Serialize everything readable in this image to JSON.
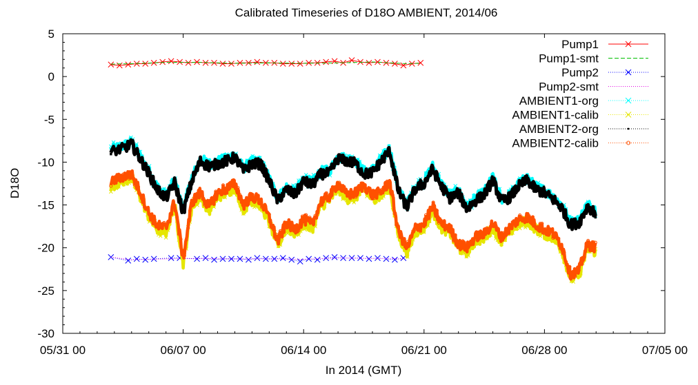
{
  "chart_data": {
    "type": "line",
    "title": "Calibrated Timeseries of D18O AMBIENT, 2014/06",
    "xlabel": "In 2014 (GMT)",
    "ylabel": "D18O",
    "ylim": [
      -30,
      5
    ],
    "yticks": [
      5,
      0,
      -5,
      -10,
      -15,
      -20,
      -25,
      -30
    ],
    "xlim": [
      "2014-05-31 00:00",
      "2014-07-05 00:00"
    ],
    "xticks": [
      "05/31 00",
      "06/07 00",
      "06/14 00",
      "06/21 00",
      "06/28 00",
      "07/05 00"
    ],
    "legend_position": "top-right",
    "grid": false,
    "series": [
      {
        "name": "Pump1",
        "color": "#ff0000",
        "marker": "x",
        "line": "solid",
        "x": [
          2.8,
          3.3,
          3.8,
          4.3,
          4.8,
          5.3,
          5.8,
          6.3,
          6.8,
          7.3,
          7.8,
          8.3,
          8.8,
          9.3,
          9.8,
          10.3,
          10.8,
          11.3,
          11.8,
          12.3,
          12.8,
          13.3,
          13.8,
          14.3,
          14.8,
          15.3,
          15.8,
          16.3,
          16.8,
          17.3,
          17.8,
          18.3,
          18.8,
          19.3,
          19.8,
          20.3,
          20.8
        ],
        "y": [
          1.4,
          1.3,
          1.4,
          1.5,
          1.5,
          1.6,
          1.7,
          1.8,
          1.7,
          1.6,
          1.7,
          1.6,
          1.6,
          1.5,
          1.5,
          1.6,
          1.6,
          1.7,
          1.6,
          1.6,
          1.5,
          1.5,
          1.5,
          1.6,
          1.6,
          1.7,
          1.8,
          1.6,
          1.9,
          1.7,
          1.6,
          1.7,
          1.6,
          1.5,
          1.3,
          1.5,
          1.6
        ]
      },
      {
        "name": "Pump1-smt",
        "color": "#00c000",
        "marker": "none",
        "line": "dashed",
        "x": [
          2.8,
          4.0,
          6.0,
          8.0,
          10.0,
          12.0,
          14.0,
          16.0,
          18.0,
          20.0,
          20.8
        ],
        "y": [
          1.45,
          1.5,
          1.65,
          1.65,
          1.55,
          1.6,
          1.55,
          1.6,
          1.7,
          1.5,
          1.55
        ]
      },
      {
        "name": "Pump2",
        "color": "#0000ff",
        "marker": "x",
        "line": "dotted",
        "x": [
          2.8,
          3.8,
          4.3,
          4.8,
          5.3,
          6.3,
          6.8,
          7.8,
          8.3,
          8.8,
          9.3,
          9.8,
          10.3,
          10.8,
          11.3,
          11.8,
          12.3,
          12.8,
          13.3,
          13.8,
          14.3,
          14.8,
          15.3,
          15.8,
          16.3,
          16.8,
          17.3,
          17.8,
          18.3,
          18.8,
          19.3,
          19.8
        ],
        "y": [
          -21.1,
          -21.5,
          -21.3,
          -21.4,
          -21.3,
          -21.2,
          -21.2,
          -21.3,
          -21.2,
          -21.4,
          -21.3,
          -21.3,
          -21.3,
          -21.4,
          -21.2,
          -21.3,
          -21.3,
          -21.2,
          -21.4,
          -21.6,
          -21.3,
          -21.4,
          -21.2,
          -21.1,
          -21.2,
          -21.2,
          -21.2,
          -21.3,
          -21.2,
          -21.3,
          -21.4,
          -21.2
        ]
      },
      {
        "name": "Pump2-smt",
        "color": "#e000e0",
        "marker": "none",
        "line": "dotted",
        "x": [
          2.8,
          4.0,
          6.0,
          8.0,
          10.0,
          12.0,
          14.0,
          16.0,
          18.0,
          19.8
        ],
        "y": [
          -21.1,
          -21.4,
          -21.3,
          -21.25,
          -21.3,
          -21.3,
          -21.35,
          -21.2,
          -21.25,
          -21.3
        ]
      },
      {
        "name": "AMBIENT1-org",
        "color": "#00ffff",
        "marker": "x",
        "line": "dotted",
        "x": [
          2.8,
          3.5,
          4.0,
          4.5,
          5.0,
          5.5,
          6.0,
          6.5,
          7.0,
          7.5,
          8.0,
          8.5,
          9.0,
          9.5,
          10.0,
          10.5,
          11.0,
          11.5,
          12.0,
          12.5,
          13.0,
          13.5,
          14.0,
          14.5,
          15.0,
          15.5,
          16.0,
          16.5,
          17.0,
          17.5,
          18.0,
          18.5,
          19.0,
          19.5,
          20.0,
          20.5,
          21.0,
          21.5,
          22.0,
          22.5,
          23.0,
          23.5,
          24.0,
          24.5,
          25.0,
          25.5,
          26.0,
          26.5,
          27.0,
          27.5,
          28.0,
          28.5,
          29.0,
          29.5,
          30.0,
          30.5,
          31.0
        ],
        "y": [
          -8.5,
          -8.1,
          -7.6,
          -9.3,
          -11.0,
          -12.9,
          -13.9,
          -12.1,
          -15.5,
          -11.9,
          -9.6,
          -10.2,
          -9.9,
          -9.6,
          -9.1,
          -10.7,
          -9.9,
          -9.9,
          -11.9,
          -14.2,
          -12.9,
          -13.5,
          -11.9,
          -12.4,
          -11.1,
          -11.0,
          -9.3,
          -9.6,
          -9.8,
          -11.1,
          -10.9,
          -9.6,
          -8.4,
          -13.0,
          -15.0,
          -12.8,
          -12.2,
          -10.5,
          -12.5,
          -13.9,
          -13.3,
          -15.2,
          -14.2,
          -13.5,
          -11.8,
          -14.3,
          -13.8,
          -12.5,
          -11.8,
          -12.9,
          -13.3,
          -14.0,
          -15.0,
          -17.0,
          -16.8,
          -14.9,
          -15.6
        ]
      },
      {
        "name": "AMBIENT1-calib",
        "color": "#e6e600",
        "marker": "x",
        "line": "dotted",
        "x": [
          2.8,
          3.5,
          4.0,
          4.5,
          5.0,
          5.5,
          6.0,
          6.5,
          7.0,
          7.5,
          8.0,
          8.5,
          9.0,
          9.5,
          10.0,
          10.5,
          11.0,
          11.5,
          12.0,
          12.5,
          13.0,
          13.5,
          14.0,
          14.5,
          15.0,
          15.5,
          16.0,
          16.5,
          17.0,
          17.5,
          18.0,
          18.5,
          19.0,
          19.5,
          20.0,
          20.5,
          21.0,
          21.5,
          22.0,
          22.5,
          23.0,
          23.5,
          24.0,
          24.5,
          25.0,
          25.5,
          26.0,
          26.5,
          27.0,
          27.5,
          28.0,
          28.5,
          29.0,
          29.5,
          30.0,
          30.5,
          31.0
        ],
        "y": [
          -12.8,
          -12.2,
          -11.9,
          -14.0,
          -16.4,
          -17.9,
          -18.2,
          -15.1,
          -21.8,
          -15.2,
          -14.0,
          -15.7,
          -14.1,
          -13.6,
          -13.0,
          -15.5,
          -14.5,
          -15.0,
          -17.0,
          -19.8,
          -17.6,
          -18.4,
          -17.2,
          -17.8,
          -15.1,
          -14.5,
          -13.0,
          -14.3,
          -14.1,
          -13.2,
          -14.3,
          -14.0,
          -12.8,
          -18.5,
          -20.6,
          -18.2,
          -17.7,
          -15.7,
          -17.7,
          -18.2,
          -20.1,
          -20.5,
          -19.2,
          -18.9,
          -17.6,
          -19.3,
          -18.1,
          -17.2,
          -16.9,
          -17.8,
          -18.4,
          -18.8,
          -20.2,
          -23.6,
          -23.2,
          -20.1,
          -20.5
        ]
      },
      {
        "name": "AMBIENT2-org",
        "color": "#000000",
        "marker": "square",
        "line": "dotted",
        "x": [
          2.8,
          3.5,
          4.0,
          4.5,
          5.0,
          5.5,
          6.0,
          6.5,
          7.0,
          7.5,
          8.0,
          8.5,
          9.0,
          9.5,
          10.0,
          10.5,
          11.0,
          11.5,
          12.0,
          12.5,
          13.0,
          13.5,
          14.0,
          14.5,
          15.0,
          15.5,
          16.0,
          16.5,
          17.0,
          17.5,
          18.0,
          18.5,
          19.0,
          19.5,
          20.0,
          20.5,
          21.0,
          21.5,
          22.0,
          22.5,
          23.0,
          23.5,
          24.0,
          24.5,
          25.0,
          25.5,
          26.0,
          26.5,
          27.0,
          27.5,
          28.0,
          28.5,
          29.0,
          29.5,
          30.0,
          30.5,
          31.0
        ],
        "y": [
          -8.8,
          -8.4,
          -7.9,
          -9.6,
          -11.3,
          -13.2,
          -14.2,
          -12.4,
          -15.8,
          -12.2,
          -9.9,
          -10.5,
          -10.2,
          -9.9,
          -9.4,
          -11.0,
          -10.2,
          -10.2,
          -12.2,
          -14.5,
          -13.2,
          -13.8,
          -12.2,
          -12.7,
          -11.4,
          -11.3,
          -9.6,
          -9.9,
          -10.1,
          -11.4,
          -11.2,
          -9.9,
          -8.7,
          -13.3,
          -15.3,
          -13.1,
          -12.5,
          -10.8,
          -12.8,
          -14.2,
          -13.6,
          -15.5,
          -14.5,
          -13.8,
          -12.1,
          -14.6,
          -14.1,
          -12.8,
          -12.1,
          -13.2,
          -13.6,
          -14.3,
          -15.3,
          -17.3,
          -17.1,
          -15.2,
          -15.9
        ]
      },
      {
        "name": "AMBIENT2-calib",
        "color": "#ff5000",
        "marker": "circle",
        "line": "dotted",
        "x": [
          2.8,
          3.5,
          4.0,
          4.5,
          5.0,
          5.5,
          6.0,
          6.5,
          7.0,
          7.5,
          8.0,
          8.5,
          9.0,
          9.5,
          10.0,
          10.5,
          11.0,
          11.5,
          12.0,
          12.5,
          13.0,
          13.5,
          14.0,
          14.5,
          15.0,
          15.5,
          16.0,
          16.5,
          17.0,
          17.5,
          18.0,
          18.5,
          19.0,
          19.5,
          20.0,
          20.5,
          21.0,
          21.5,
          22.0,
          22.5,
          23.0,
          23.5,
          24.0,
          24.5,
          25.0,
          25.5,
          26.0,
          26.5,
          27.0,
          27.5,
          28.0,
          28.5,
          29.0,
          29.5,
          30.0,
          30.5,
          31.0
        ],
        "y": [
          -12.3,
          -11.7,
          -11.4,
          -13.5,
          -15.9,
          -17.4,
          -17.7,
          -14.6,
          -21.3,
          -14.7,
          -13.5,
          -15.2,
          -13.6,
          -13.1,
          -12.5,
          -15.0,
          -14.0,
          -14.5,
          -16.5,
          -19.3,
          -17.1,
          -17.9,
          -16.7,
          -17.3,
          -14.6,
          -14.0,
          -12.5,
          -13.8,
          -13.6,
          -12.7,
          -13.8,
          -13.5,
          -12.3,
          -18.0,
          -20.1,
          -17.7,
          -17.2,
          -15.2,
          -17.2,
          -17.7,
          -19.6,
          -20.0,
          -18.7,
          -18.4,
          -17.1,
          -18.8,
          -17.6,
          -16.7,
          -16.4,
          -17.3,
          -17.9,
          -18.3,
          -19.7,
          -23.1,
          -22.7,
          -19.6,
          -20.0
        ]
      }
    ]
  }
}
